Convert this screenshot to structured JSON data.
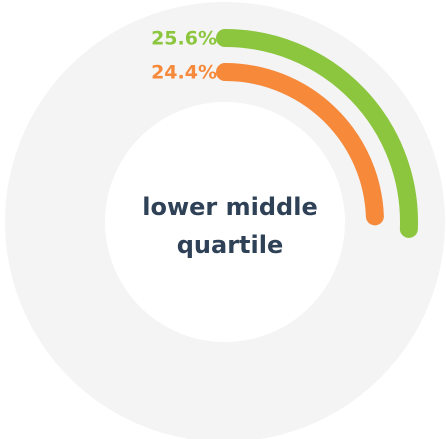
{
  "chart_data": {
    "type": "radial_bar",
    "title": "lower middle quartile",
    "values": [
      25.6,
      24.4
    ],
    "value_labels": [
      "25.6%",
      "24.4%"
    ],
    "colors": [
      "#8cc63f",
      "#f7893b"
    ]
  }
}
